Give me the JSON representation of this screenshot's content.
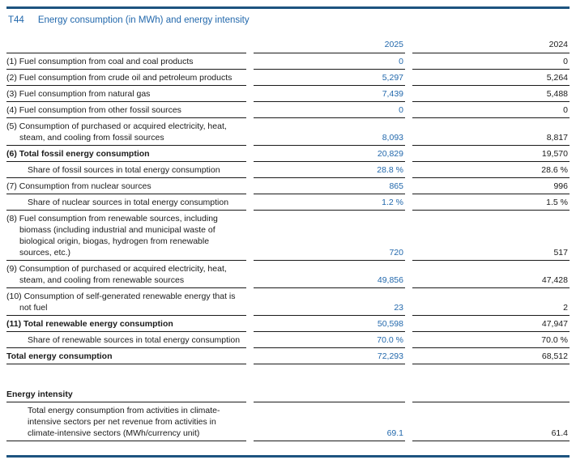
{
  "header": {
    "table_id": "T44",
    "title": "Energy consumption (in MWh) and energy intensity"
  },
  "columns": {
    "year_current": "2025",
    "year_prior": "2024"
  },
  "table": {
    "rows": [
      {
        "label": "(1) Fuel consumption from coal and coal products",
        "y2025": "0",
        "y2024": "0"
      },
      {
        "label": "(2) Fuel consumption from crude oil and petroleum products",
        "y2025": "5,297",
        "y2024": "5,264"
      },
      {
        "label": "(3) Fuel consumption from natural gas",
        "y2025": "7,439",
        "y2024": "5,488"
      },
      {
        "label": "(4) Fuel consumption from other fossil sources",
        "y2025": "0",
        "y2024": "0"
      },
      {
        "label": "(5) Consumption of purchased or acquired electricity, heat, steam, and cooling from fossil sources",
        "y2025": "8,093",
        "y2024": "8,817"
      },
      {
        "label": "(6) Total fossil energy consumption",
        "y2025": "20,829",
        "y2024": "19,570"
      },
      {
        "label": "Share of fossil sources in total energy consumption",
        "y2025": "28.8 %",
        "y2024": "28.6 %"
      },
      {
        "label": "(7) Consumption from nuclear sources",
        "y2025": "865",
        "y2024": "996"
      },
      {
        "label": "Share of nuclear sources in total energy consumption",
        "y2025": "1.2 %",
        "y2024": "1.5 %"
      },
      {
        "label": "(8) Fuel consumption from renewable sources, including biomass (including industrial and municipal waste of biological origin, biogas, hydrogen from renewable sources, etc.)",
        "y2025": "720",
        "y2024": "517"
      },
      {
        "label": "(9) Consumption of purchased or acquired electricity, heat, steam, and cooling from renewable sources",
        "y2025": "49,856",
        "y2024": "47,428"
      },
      {
        "label": "(10) Consumption of self-generated renewable energy that is not fuel",
        "y2025": "23",
        "y2024": "2"
      },
      {
        "label": "(11) Total renewable energy consumption",
        "y2025": "50,598",
        "y2024": "47,947"
      },
      {
        "label": "Share of renewable sources in total energy consumption",
        "y2025": "70.0 %",
        "y2024": "70.0 %"
      },
      {
        "label": "Total energy consumption",
        "y2025": "72,293",
        "y2024": "68,512"
      }
    ]
  },
  "intensity": {
    "section_label": "Energy intensity",
    "row": {
      "label": "Total energy consumption from activities in climate-intensive sectors per net revenue from activities in climate-intensive sectors (MWh/currency unit)",
      "y2025": "69.1",
      "y2024": "61.4"
    }
  },
  "colors": {
    "accent_blue": "#2268ac",
    "rule_blue": "#1d5480",
    "text": "#1a1a1a"
  }
}
